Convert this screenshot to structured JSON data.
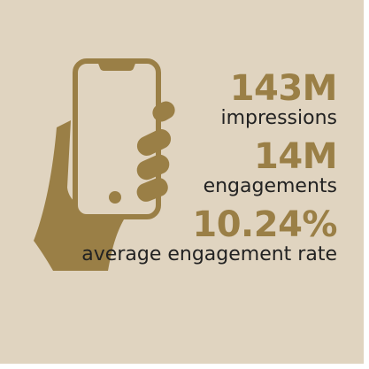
{
  "colors": {
    "background": "#e0d4c0",
    "accent": "#9a7f46",
    "text": "#222222"
  },
  "illustration": {
    "icon": "hand-holding-phone-icon"
  },
  "stats": [
    {
      "value": "143M",
      "label": "impressions"
    },
    {
      "value": "14M",
      "label": "engagements"
    },
    {
      "value": "10.24%",
      "label": "average engagement rate"
    }
  ]
}
